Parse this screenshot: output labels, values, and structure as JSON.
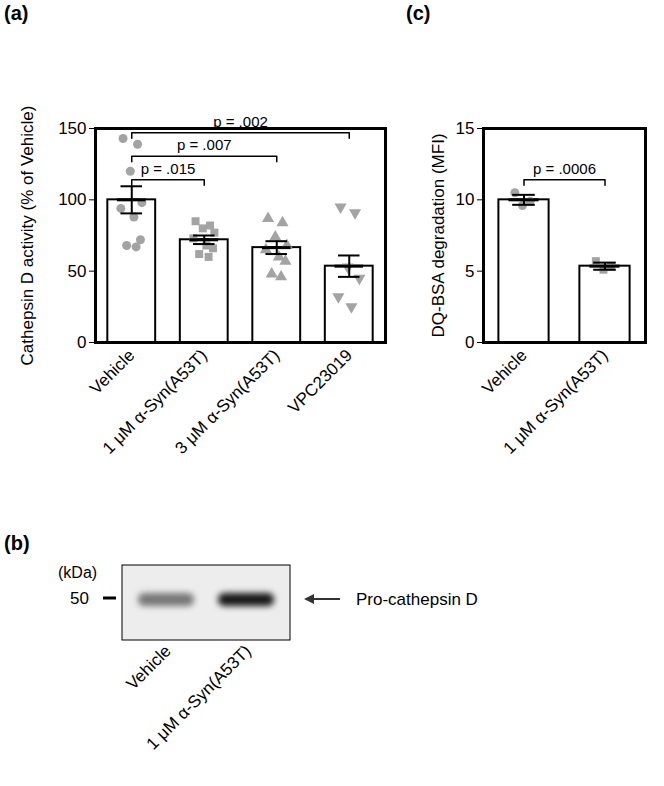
{
  "chart_data": [
    {
      "type": "bar",
      "panel": "(a)",
      "y_label": "Cathepsin D activity (% of Vehicle)",
      "categories": [
        "Vehicle",
        "1 μM α-Syn(A53T)",
        "3 μM α-Syn(A53T)",
        "VPC23019"
      ],
      "values": [
        100,
        72,
        66.5,
        53.5
      ],
      "errors": [
        9.5,
        3,
        4.5,
        7.5
      ],
      "points": [
        [
          143,
          139,
          120,
          98,
          94,
          88,
          72,
          68,
          67
        ],
        [
          85,
          82,
          80,
          77,
          73,
          68,
          66,
          62,
          60
        ],
        [
          87,
          84,
          74,
          68,
          65,
          60,
          57,
          48,
          46
        ],
        [
          95,
          91,
          53,
          45,
          32,
          25
        ]
      ],
      "markers": [
        "circle",
        "square",
        "triangle",
        "triangle-down"
      ],
      "color": "#ffffff",
      "ylim": [
        0,
        150
      ],
      "yticks": [
        0,
        50,
        100,
        150
      ],
      "comparisons": [
        {
          "from": "Vehicle",
          "to": "1 μM α-Syn(A53T)",
          "label": "p = .015"
        },
        {
          "from": "Vehicle",
          "to": "3 μM α-Syn(A53T)",
          "label": "p = .007"
        },
        {
          "from": "Vehicle",
          "to": "VPC23019",
          "label": "p = .002"
        }
      ]
    },
    {
      "type": "bar",
      "panel": "(c)",
      "y_label": "DQ-BSA degradation (MFI)",
      "categories": [
        "Vehicle",
        "1 μM α-Syn(A53T)"
      ],
      "values": [
        10,
        5.35
      ],
      "errors": [
        0.35,
        0.25
      ],
      "points": [
        [
          10.5,
          9.9,
          9.6
        ],
        [
          5.7,
          5.3,
          5.1
        ]
      ],
      "markers": [
        "circle",
        "square"
      ],
      "color": "#ffffff",
      "ylim": [
        0,
        15
      ],
      "yticks": [
        0,
        5,
        10,
        15
      ],
      "comparisons": [
        {
          "from": "Vehicle",
          "to": "1 μM α-Syn(A53T)",
          "label": "p = .0006"
        }
      ]
    }
  ],
  "blot": {
    "panel": "(b)",
    "unit_label": "(kDa)",
    "size_marker_kda": 50,
    "lanes": [
      "Vehicle",
      "1 μM α-Syn(A53T)"
    ],
    "band_intensity": [
      0.5,
      0.9
    ],
    "band_label": "Pro-cathepsin D"
  }
}
